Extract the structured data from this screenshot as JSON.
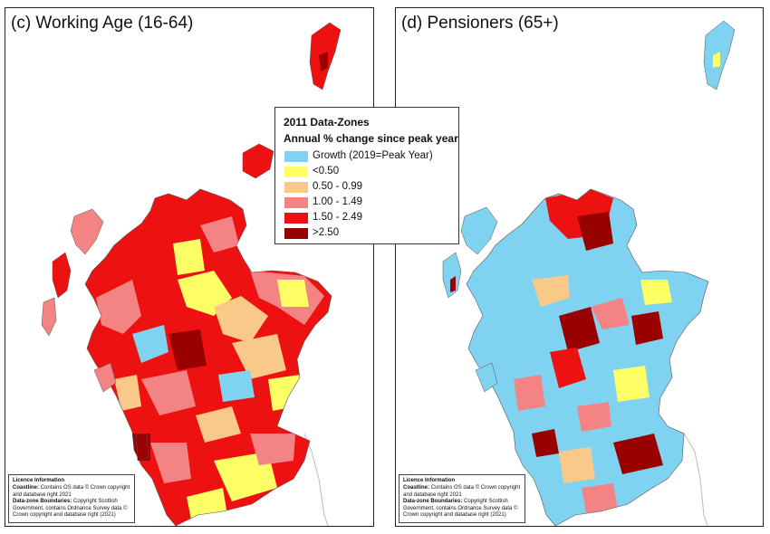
{
  "panels": {
    "c": {
      "title": "(c) Working Age (16-64)"
    },
    "d": {
      "title": "(d) Pensioners (65+)"
    }
  },
  "legend": {
    "title": "2011 Data-Zones",
    "subtitle": "Annual % change since peak year",
    "items": [
      {
        "label": "Growth (2019=Peak Year)",
        "color": "#7fd3f0"
      },
      {
        "label": "<0.50",
        "color": "#ffff66"
      },
      {
        "label": "0.50 - 0.99",
        "color": "#f9c98a"
      },
      {
        "label": "1.00 - 1.49",
        "color": "#f48484"
      },
      {
        "label": "1.50 - 2.49",
        "color": "#ee1111"
      },
      {
        "label": ">2.50",
        "color": "#990000"
      }
    ]
  },
  "licence": {
    "heading": "Licence Information",
    "coastline_label": "Coastline:",
    "coastline_text": "Contains OS data © Crown copyright and database right 2021",
    "boundaries_label": "Data-zone Boundaries:",
    "boundaries_text": "Copyright Scottish Government, contains Ordnance Survey data © Crown copyright and database right (2021)"
  }
}
